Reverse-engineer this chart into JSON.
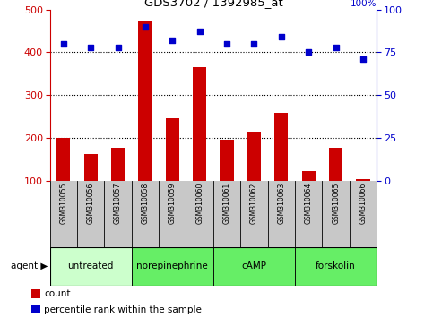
{
  "title": "GDS3702 / 1392985_at",
  "samples": [
    "GSM310055",
    "GSM310056",
    "GSM310057",
    "GSM310058",
    "GSM310059",
    "GSM310060",
    "GSM310061",
    "GSM310062",
    "GSM310063",
    "GSM310064",
    "GSM310065",
    "GSM310066"
  ],
  "counts": [
    200,
    163,
    178,
    475,
    247,
    365,
    195,
    215,
    259,
    123,
    178,
    104
  ],
  "percentile_ranks": [
    80,
    78,
    78,
    90,
    82,
    87,
    80,
    80,
    84,
    75,
    78,
    71
  ],
  "ylim_left": [
    100,
    500
  ],
  "ylim_right": [
    0,
    100
  ],
  "yticks_left": [
    100,
    200,
    300,
    400,
    500
  ],
  "yticks_right": [
    0,
    25,
    50,
    75,
    100
  ],
  "bar_color": "#cc0000",
  "dot_color": "#0000cc",
  "legend_count_label": "count",
  "legend_pct_label": "percentile rank within the sample",
  "bar_width": 0.5,
  "bg_color_gray": "#c8c8c8",
  "bg_color_green_light": "#ccffcc",
  "bg_color_green": "#66ee66",
  "agent_groups": [
    {
      "label": "untreated",
      "indices": [
        0,
        1,
        2
      ],
      "color": "#ccffcc"
    },
    {
      "label": "norepinephrine",
      "indices": [
        3,
        4,
        5
      ],
      "color": "#66ee66"
    },
    {
      "label": "cAMP",
      "indices": [
        6,
        7,
        8
      ],
      "color": "#66ee66"
    },
    {
      "label": "forskolin",
      "indices": [
        9,
        10,
        11
      ],
      "color": "#66ee66"
    }
  ],
  "hgrid_lines": [
    200,
    300,
    400
  ],
  "left_axis_color": "#cc0000",
  "right_axis_color": "#0000cc"
}
